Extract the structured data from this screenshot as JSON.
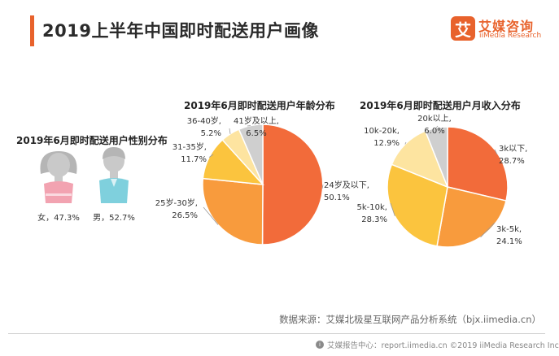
{
  "header": {
    "title": "2019上半年中国即时配送用户画像",
    "accent_color": "#e8622c"
  },
  "logo": {
    "mark": "艾",
    "name_cn": "艾媒咨询",
    "name_en": "iiMedia Research"
  },
  "chart_data": [
    {
      "type": "pictogram",
      "title": "2019年6月即时配送用户性别分布",
      "categories": [
        "女",
        "男"
      ],
      "values": [
        47.3,
        52.7
      ],
      "unit": "%",
      "labels": [
        "女，47.3%",
        "男，52.7%"
      ],
      "colors": [
        "#f2a3b1",
        "#7fd0dd"
      ]
    },
    {
      "type": "pie",
      "title": "2019年6月即时配送用户年龄分布",
      "categories": [
        "24岁及以下",
        "25岁-30岁",
        "31-35岁",
        "36-40岁",
        "41岁及以上"
      ],
      "values": [
        50.1,
        26.5,
        11.7,
        5.2,
        6.5
      ],
      "unit": "%",
      "labels": [
        [
          "24岁及以下,",
          "50.1%"
        ],
        [
          "25岁-30岁,",
          "26.5%"
        ],
        [
          "31-35岁,",
          "11.7%"
        ],
        [
          "36-40岁,",
          "5.2%"
        ],
        [
          "41岁及以上,",
          "6.5%"
        ]
      ],
      "colors": [
        "#f26b3a",
        "#f89b3d",
        "#fbc43e",
        "#fde4a0",
        "#cfcfcf"
      ]
    },
    {
      "type": "pie",
      "title": "2019年6月即时配送用户月收入分布",
      "categories": [
        "3k以下",
        "3k-5k",
        "5k-10k",
        "10k-20k",
        "20k以上"
      ],
      "values": [
        28.7,
        24.1,
        28.3,
        12.9,
        6.0
      ],
      "unit": "%",
      "labels": [
        [
          "3k以下,",
          "28.7%"
        ],
        [
          "3k-5k,",
          "24.1%"
        ],
        [
          "5k-10k,",
          "28.3%"
        ],
        [
          "10k-20k,",
          "12.9%"
        ],
        [
          "20k以上,",
          "6.0%"
        ]
      ],
      "colors": [
        "#f26b3a",
        "#f89b3d",
        "#fbc43e",
        "#fde4a0",
        "#cfcfcf"
      ]
    }
  ],
  "source": "数据来源：艾媒北极星互联网产品分析系统（bjx.iimedia.cn）",
  "footer": {
    "icon": "iimedia-report-icon",
    "text": "艾媒报告中心：report.iimedia.cn    ©2019  iiMedia Research  Inc"
  }
}
